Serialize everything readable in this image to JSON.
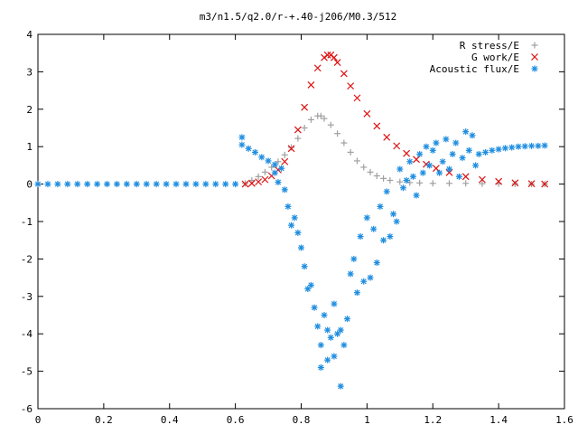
{
  "chart_data": {
    "type": "scatter",
    "title": "m3/n1.5/q2.0/r-+.40-j206/M0.3/512",
    "xlabel": "",
    "ylabel": "",
    "xlim": [
      0,
      1.6
    ],
    "ylim": [
      -6,
      4
    ],
    "xticks": [
      "0",
      "0.2",
      "0.4",
      "0.6",
      "0.8",
      "1",
      "1.2",
      "1.4",
      "1.6"
    ],
    "yticks": [
      "4",
      "3",
      "2",
      "1",
      "0",
      "-1",
      "-2",
      "-3",
      "-4",
      "-5",
      "-6"
    ],
    "grid": false,
    "legend_position": "top-right",
    "series": [
      {
        "name": "R stress/E",
        "marker": "plus",
        "color": "#a0a0a0",
        "x": [
          0.63,
          0.65,
          0.67,
          0.69,
          0.71,
          0.73,
          0.75,
          0.77,
          0.79,
          0.81,
          0.83,
          0.85,
          0.86,
          0.87,
          0.89,
          0.91,
          0.93,
          0.95,
          0.97,
          0.99,
          1.01,
          1.03,
          1.05,
          1.07,
          1.1,
          1.13,
          1.16,
          1.2,
          1.25,
          1.3,
          1.35,
          1.4,
          1.45,
          1.5,
          1.54
        ],
        "y": [
          0.02,
          0.1,
          0.2,
          0.32,
          0.45,
          0.6,
          0.78,
          0.98,
          1.22,
          1.5,
          1.72,
          1.82,
          1.82,
          1.75,
          1.58,
          1.35,
          1.1,
          0.85,
          0.62,
          0.45,
          0.32,
          0.22,
          0.15,
          0.1,
          0.06,
          0.04,
          0.03,
          0.02,
          0.02,
          0.02,
          0.01,
          0.01,
          0.01,
          0.0,
          0.0
        ]
      },
      {
        "name": "G work/E",
        "marker": "cross",
        "color": "#dd1111",
        "x": [
          0.63,
          0.65,
          0.67,
          0.69,
          0.71,
          0.73,
          0.75,
          0.77,
          0.79,
          0.81,
          0.83,
          0.85,
          0.87,
          0.88,
          0.89,
          0.9,
          0.91,
          0.93,
          0.95,
          0.97,
          1.0,
          1.03,
          1.06,
          1.09,
          1.12,
          1.15,
          1.18,
          1.21,
          1.25,
          1.3,
          1.35,
          1.4,
          1.45,
          1.5,
          1.54
        ],
        "y": [
          0.0,
          0.02,
          0.06,
          0.12,
          0.22,
          0.38,
          0.6,
          0.95,
          1.45,
          2.05,
          2.65,
          3.1,
          3.38,
          3.45,
          3.45,
          3.38,
          3.25,
          2.95,
          2.62,
          2.3,
          1.88,
          1.55,
          1.25,
          1.02,
          0.82,
          0.66,
          0.53,
          0.42,
          0.31,
          0.2,
          0.12,
          0.07,
          0.03,
          0.01,
          0.0
        ]
      },
      {
        "name": "Acoustic flux/E",
        "marker": "star",
        "color": "#1f8ee0",
        "x": [
          0.0,
          0.03,
          0.06,
          0.09,
          0.12,
          0.15,
          0.18,
          0.21,
          0.24,
          0.27,
          0.3,
          0.33,
          0.36,
          0.39,
          0.42,
          0.45,
          0.48,
          0.51,
          0.54,
          0.57,
          0.6,
          0.62,
          0.62,
          0.64,
          0.66,
          0.68,
          0.7,
          0.72,
          0.74,
          0.72,
          0.73,
          0.75,
          0.76,
          0.77,
          0.78,
          0.79,
          0.8,
          0.81,
          0.82,
          0.83,
          0.84,
          0.85,
          0.86,
          0.86,
          0.87,
          0.88,
          0.88,
          0.89,
          0.9,
          0.9,
          0.91,
          0.92,
          0.92,
          0.93,
          0.94,
          0.95,
          0.96,
          0.97,
          0.98,
          0.99,
          1.0,
          1.01,
          1.02,
          1.03,
          1.04,
          1.05,
          1.06,
          1.07,
          1.08,
          1.09,
          1.1,
          1.11,
          1.12,
          1.13,
          1.14,
          1.15,
          1.16,
          1.17,
          1.18,
          1.19,
          1.2,
          1.21,
          1.22,
          1.23,
          1.24,
          1.25,
          1.26,
          1.27,
          1.28,
          1.29,
          1.3,
          1.31,
          1.32,
          1.33,
          1.34,
          1.36,
          1.38,
          1.4,
          1.42,
          1.44,
          1.46,
          1.48,
          1.5,
          1.52,
          1.54
        ],
        "y": [
          0,
          0,
          0,
          0,
          0,
          0,
          0,
          0,
          0,
          0,
          0,
          0,
          0,
          0,
          0,
          0,
          0,
          0,
          0,
          0,
          0,
          1.25,
          1.05,
          0.95,
          0.85,
          0.72,
          0.62,
          0.52,
          0.42,
          0.3,
          0.05,
          -0.15,
          -0.6,
          -1.1,
          -0.9,
          -1.3,
          -1.7,
          -2.2,
          -2.8,
          -2.7,
          -3.3,
          -3.8,
          -4.3,
          -4.9,
          -3.5,
          -4.7,
          -3.9,
          -4.1,
          -4.6,
          -3.2,
          -4.0,
          -3.9,
          -5.4,
          -4.3,
          -3.6,
          -2.4,
          -2.0,
          -2.9,
          -1.4,
          -2.6,
          -0.9,
          -2.5,
          -1.2,
          -2.1,
          -0.6,
          -1.5,
          -0.2,
          -1.4,
          -0.8,
          -1.0,
          0.4,
          -0.1,
          0.1,
          0.6,
          0.2,
          -0.3,
          0.8,
          0.3,
          1.0,
          0.5,
          0.9,
          1.1,
          0.3,
          0.6,
          1.2,
          0.4,
          0.8,
          1.1,
          0.2,
          0.7,
          1.4,
          0.9,
          1.3,
          0.5,
          0.8,
          0.85,
          0.9,
          0.93,
          0.96,
          0.98,
          1.0,
          1.01,
          1.02,
          1.02,
          1.03
        ]
      }
    ]
  }
}
